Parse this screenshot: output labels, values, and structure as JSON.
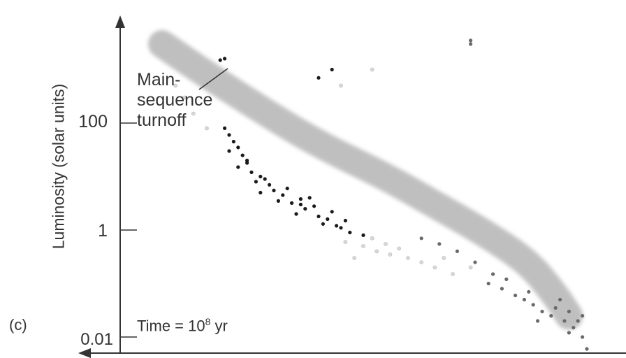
{
  "chart_data": {
    "type": "scatter",
    "title": "",
    "xlabel": "",
    "ylabel": "Luminosity (solar units)",
    "y_scale": "log",
    "y_ticks": [
      {
        "value": 100,
        "label": "100"
      },
      {
        "value": 1,
        "label": "1"
      },
      {
        "value": 0.01,
        "label": "0.01"
      }
    ],
    "panel_label": "(c)",
    "annotations": {
      "turnoff_lines": [
        "Main-",
        "sequence",
        "turnoff"
      ],
      "time_prefix": "Time = 10",
      "time_exp": "8",
      "time_suffix": " yr"
    },
    "colors": {
      "band": "#b5b5b5",
      "dark_star": "#1a1a1a",
      "light_star": "#d8d8d8",
      "mid_star": "#6a6a6a",
      "axis": "#333333"
    },
    "main_sequence_band": [
      [
        0.05,
        3000
      ],
      [
        0.15,
        800
      ],
      [
        0.28,
        160
      ],
      [
        0.4,
        40
      ],
      [
        0.55,
        10
      ],
      [
        0.66,
        3
      ],
      [
        0.77,
        0.9
      ],
      [
        0.87,
        0.25
      ],
      [
        0.93,
        0.06
      ],
      [
        0.96,
        0.025
      ]
    ],
    "series": [
      {
        "style": "dark",
        "points": [
          [
            0.19,
            80
          ],
          [
            0.2,
            60
          ],
          [
            0.21,
            45
          ],
          [
            0.22,
            35
          ],
          [
            0.2,
            30
          ],
          [
            0.23,
            25
          ],
          [
            0.24,
            18
          ],
          [
            0.22,
            15
          ],
          [
            0.25,
            12
          ],
          [
            0.27,
            10
          ],
          [
            0.26,
            8
          ],
          [
            0.29,
            7
          ],
          [
            0.3,
            5.5
          ],
          [
            0.27,
            5
          ],
          [
            0.32,
            4.5
          ],
          [
            0.31,
            3.5
          ],
          [
            0.34,
            3.2
          ],
          [
            0.36,
            3
          ],
          [
            0.37,
            2.5
          ],
          [
            0.35,
            2
          ],
          [
            0.4,
            1.8
          ],
          [
            0.42,
            1.6
          ],
          [
            0.41,
            1.3
          ],
          [
            0.44,
            1.2
          ],
          [
            0.46,
            1.5
          ],
          [
            0.38,
            4
          ],
          [
            0.33,
            6
          ],
          [
            0.28,
            9
          ],
          [
            0.24,
            20
          ],
          [
            0.43,
            2.2
          ],
          [
            0.47,
            0.9
          ],
          [
            0.45,
            1.1
          ],
          [
            0.39,
            2.8
          ],
          [
            0.36,
            3.8
          ],
          [
            0.5,
            0.8
          ],
          [
            0.18,
            1500
          ],
          [
            0.19,
            1600
          ],
          [
            0.4,
            700
          ],
          [
            0.43,
            1000
          ]
        ]
      },
      {
        "style": "light",
        "points": [
          [
            0.08,
            500
          ],
          [
            0.1,
            300
          ],
          [
            0.12,
            150
          ],
          [
            0.15,
            80
          ],
          [
            0.46,
            0.6
          ],
          [
            0.5,
            0.5
          ],
          [
            0.53,
            0.4
          ],
          [
            0.56,
            0.35
          ],
          [
            0.6,
            0.3
          ],
          [
            0.63,
            0.25
          ],
          [
            0.66,
            0.2
          ],
          [
            0.7,
            0.15
          ],
          [
            0.52,
            0.7
          ],
          [
            0.58,
            0.45
          ],
          [
            0.68,
            0.3
          ],
          [
            0.74,
            0.2
          ],
          [
            0.48,
            0.3
          ],
          [
            0.55,
            0.55
          ],
          [
            0.45,
            500
          ],
          [
            0.52,
            1000
          ]
        ]
      },
      {
        "style": "mid",
        "points": [
          [
            0.78,
            0.1
          ],
          [
            0.81,
            0.08
          ],
          [
            0.84,
            0.06
          ],
          [
            0.86,
            0.05
          ],
          [
            0.88,
            0.04
          ],
          [
            0.9,
            0.03
          ],
          [
            0.92,
            0.025
          ],
          [
            0.95,
            0.02
          ],
          [
            0.97,
            0.015
          ],
          [
            0.99,
            0.01
          ],
          [
            0.93,
            0.035
          ],
          [
            0.96,
            0.03
          ],
          [
            0.98,
            0.02
          ],
          [
            0.87,
            0.07
          ],
          [
            1.0,
            0.006
          ],
          [
            0.82,
            0.12
          ],
          [
            0.89,
            0.02
          ],
          [
            0.79,
            0.15
          ],
          [
            0.75,
            0.25
          ],
          [
            0.71,
            0.4
          ],
          [
            0.67,
            0.55
          ],
          [
            0.63,
            0.7
          ],
          [
            0.96,
            0.012
          ],
          [
            0.94,
            0.05
          ],
          [
            0.99,
            0.025
          ],
          [
            0.74,
            3000
          ],
          [
            0.74,
            3500
          ]
        ]
      }
    ]
  }
}
